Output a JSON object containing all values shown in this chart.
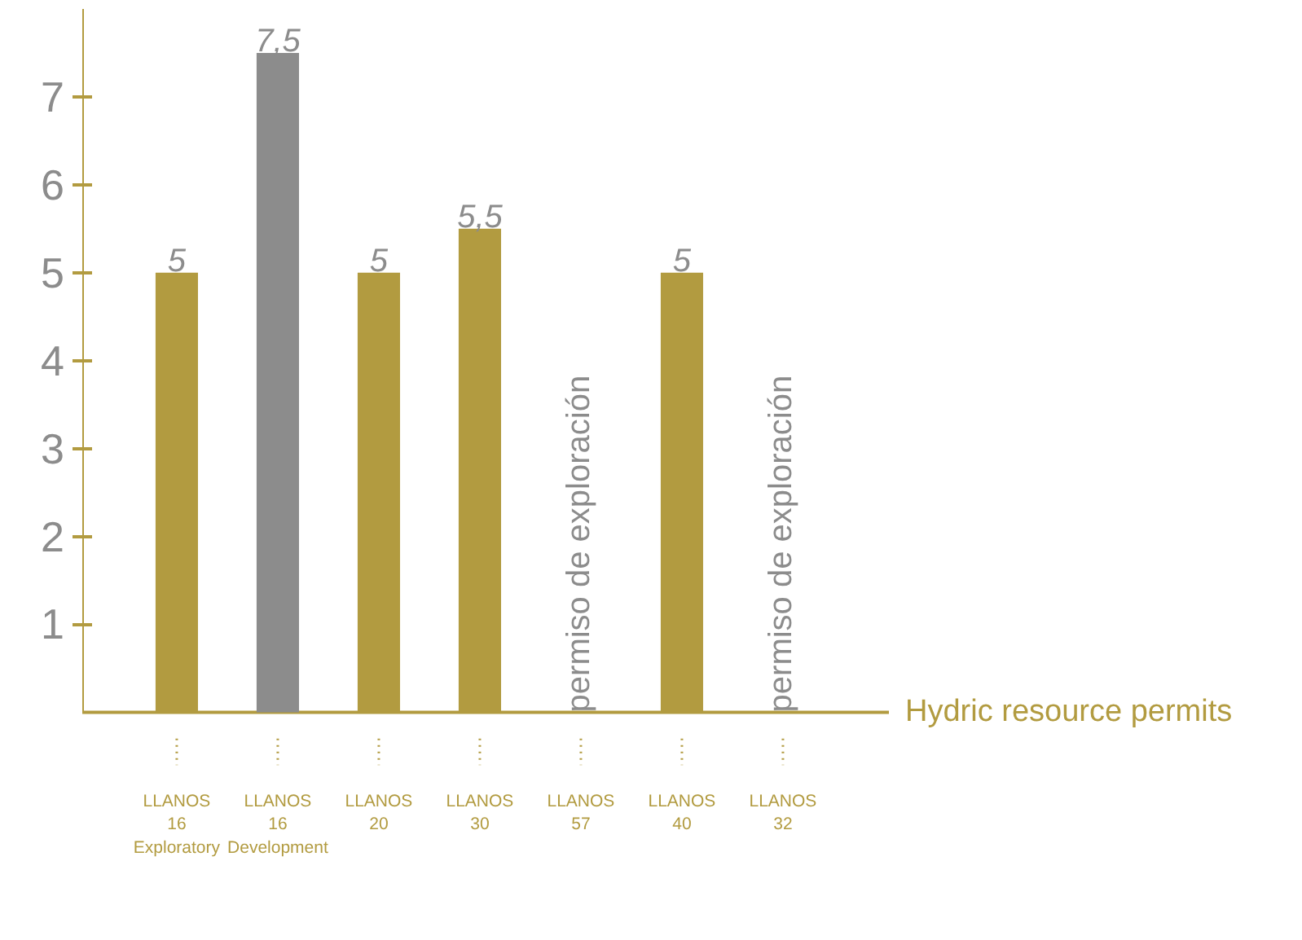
{
  "chart_data": {
    "type": "bar",
    "xlabel": "Hydric resource permits",
    "categories": [
      "LLANOS 16\nExploratory",
      "LLANOS 16\nDevelopment",
      "LLANOS 20",
      "LLANOS 30",
      "LLANOS 57",
      "LLANOS 40",
      "LLANOS 32"
    ],
    "values": [
      5,
      7.5,
      5,
      5.5,
      null,
      5,
      null
    ],
    "colors": [
      "#b29b40",
      "#8c8c8c",
      "#b29b40",
      "#b29b40",
      "#b29b40",
      "#b29b40",
      "#b29b40"
    ],
    "value_labels": [
      "5",
      "7,5",
      "5",
      "5,5",
      null,
      "5",
      null
    ],
    "ylim": [
      0,
      8
    ],
    "yticks": [
      1,
      2,
      3,
      4,
      5,
      6,
      7
    ],
    "grid": false,
    "annotations": [
      "permiso de exploración",
      "permiso de exploración"
    ]
  }
}
